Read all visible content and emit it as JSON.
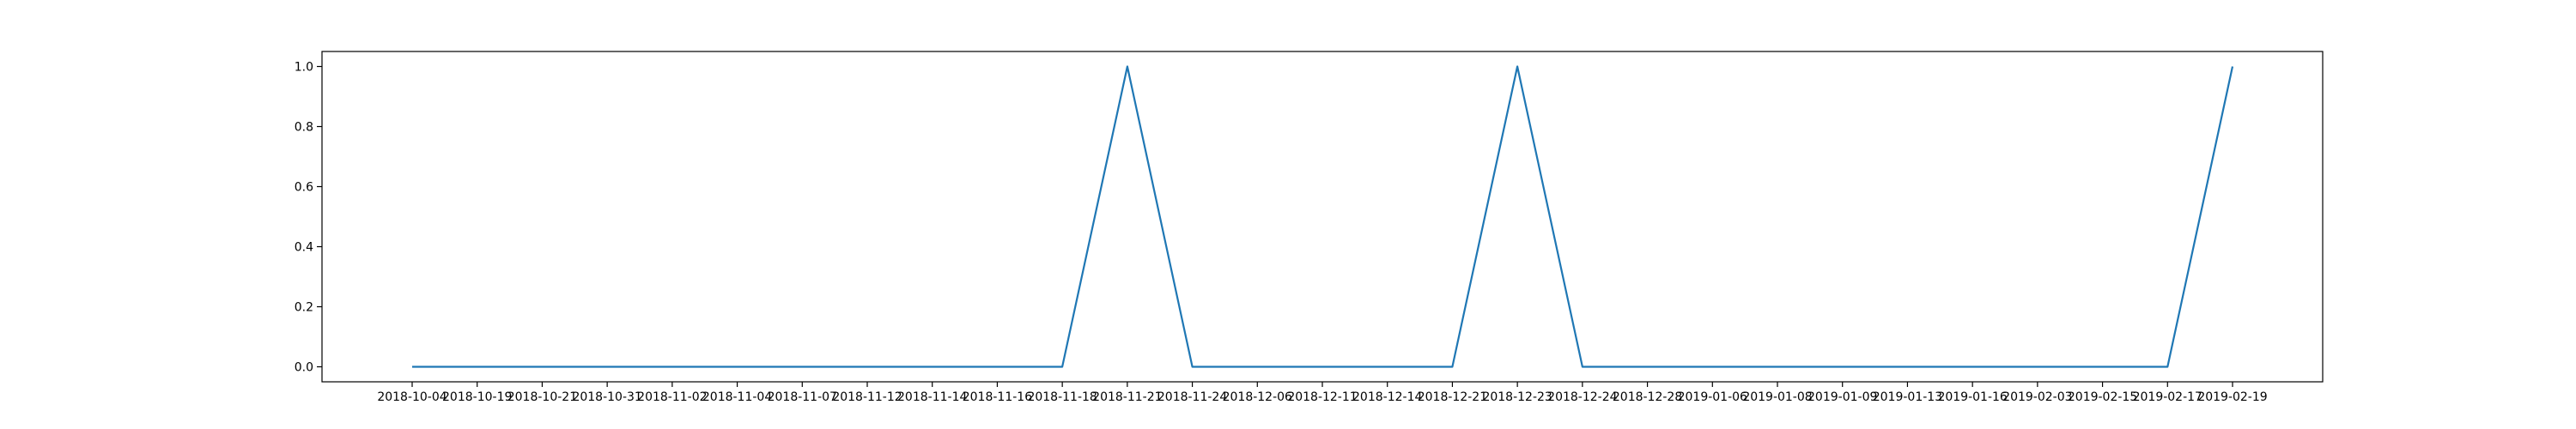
{
  "colors": {
    "series_line": "#1f77b4",
    "axes": "#000000",
    "background": "#ffffff"
  },
  "chart_data": {
    "type": "line",
    "title": "",
    "xlabel": "",
    "ylabel": "",
    "x": [
      "2018-10-04",
      "2018-10-19",
      "2018-10-21",
      "2018-10-31",
      "2018-11-02",
      "2018-11-04",
      "2018-11-07",
      "2018-11-12",
      "2018-11-14",
      "2018-11-16",
      "2018-11-18",
      "2018-11-21",
      "2018-11-24",
      "2018-12-06",
      "2018-12-11",
      "2018-12-14",
      "2018-12-21",
      "2018-12-23",
      "2018-12-24",
      "2018-12-28",
      "2019-01-06",
      "2019-01-08",
      "2019-01-09",
      "2019-01-13",
      "2019-01-16",
      "2019-02-03",
      "2019-02-15",
      "2019-02-17",
      "2019-02-19"
    ],
    "series": [
      {
        "values": [
          0,
          0,
          0,
          0,
          0,
          0,
          0,
          0,
          0,
          0,
          0,
          1,
          0,
          0,
          0,
          0,
          0,
          1,
          0,
          0,
          0,
          0,
          0,
          0,
          0,
          0,
          0,
          0,
          1
        ]
      }
    ],
    "ylim": [
      -0.05,
      1.05
    ],
    "yticks": [
      "0.0",
      "0.2",
      "0.4",
      "0.6",
      "0.8",
      "1.0"
    ],
    "grid": false,
    "legend": false
  }
}
